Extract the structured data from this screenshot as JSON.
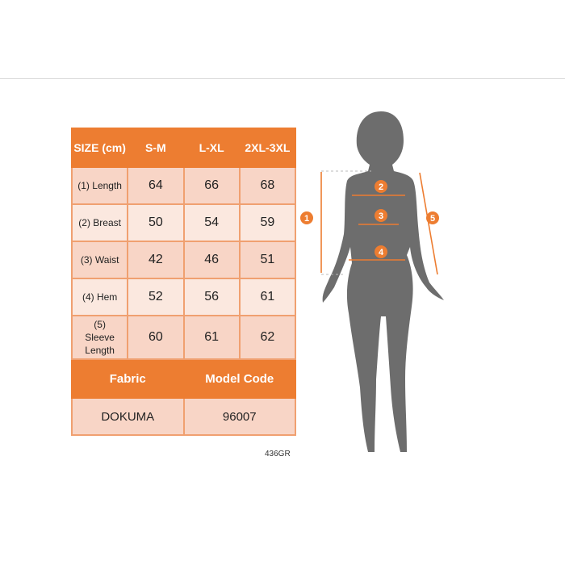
{
  "table": {
    "header": [
      "SIZE (cm)",
      "S-M",
      "L-XL",
      "2XL-3XL"
    ],
    "rows": [
      {
        "label": "(1) Length",
        "values": [
          "64",
          "66",
          "68"
        ]
      },
      {
        "label": "(2) Breast",
        "values": [
          "50",
          "54",
          "59"
        ]
      },
      {
        "label": "(3) Waist",
        "values": [
          "42",
          "46",
          "51"
        ]
      },
      {
        "label": "(4) Hem",
        "values": [
          "52",
          "56",
          "61"
        ]
      },
      {
        "label": "(5) Sleeve Length",
        "values": [
          "60",
          "61",
          "62"
        ]
      }
    ],
    "footer_header": [
      "Fabric",
      "Model Code"
    ],
    "footer_values": [
      "DOKUMA",
      "96007"
    ]
  },
  "product_code": "436GR",
  "figure": {
    "markers": [
      "1",
      "2",
      "3",
      "4",
      "5"
    ]
  },
  "colors": {
    "accent": "#ed7d31",
    "silhouette": "#6d6d6d"
  }
}
